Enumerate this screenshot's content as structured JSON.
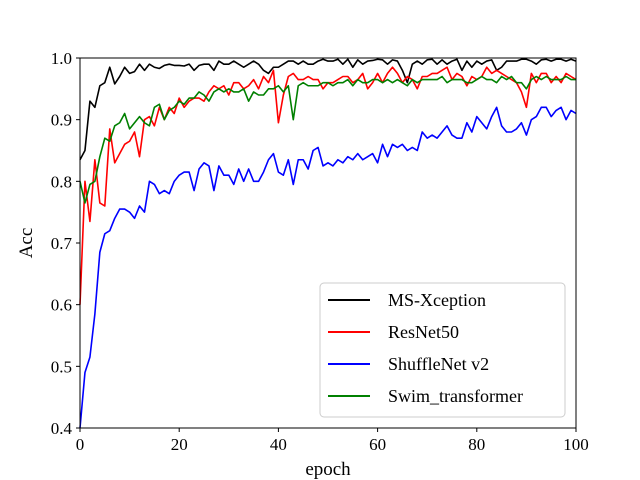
{
  "chart_data": {
    "type": "line",
    "xlabel": "epoch",
    "ylabel": "Acc",
    "xlim": [
      0,
      100
    ],
    "ylim": [
      0.4,
      1.0
    ],
    "xticks": [
      "0",
      "20",
      "40",
      "60",
      "80",
      "100"
    ],
    "yticks": [
      "0.4",
      "0.5",
      "0.6",
      "0.7",
      "0.8",
      "0.9",
      "1.0"
    ],
    "legend_position": "lower-right",
    "grid": false,
    "series": [
      {
        "name": "MS-Xception",
        "color": "#000000",
        "values": [
          0.835,
          0.85,
          0.93,
          0.92,
          0.955,
          0.96,
          0.985,
          0.958,
          0.97,
          0.985,
          0.975,
          0.978,
          0.99,
          0.98,
          0.99,
          0.985,
          0.983,
          0.988,
          0.99,
          0.988,
          0.988,
          0.987,
          0.99,
          0.98,
          0.988,
          0.99,
          0.99,
          0.98,
          0.995,
          0.99,
          0.99,
          0.995,
          0.99,
          0.985,
          0.99,
          0.995,
          0.99,
          0.98,
          0.975,
          0.985,
          0.985,
          0.99,
          0.995,
          0.995,
          0.99,
          0.995,
          0.99,
          0.99,
          0.995,
          0.998,
          0.995,
          0.995,
          0.998,
          0.99,
          0.998,
          0.985,
          0.997,
          0.99,
          0.995,
          0.996,
          0.998,
          0.997,
          0.99,
          0.997,
          0.995,
          0.98,
          0.96,
          0.99,
          0.995,
          0.99,
          0.997,
          0.998,
          0.99,
          0.997,
          0.99,
          0.995,
          0.998,
          0.98,
          0.995,
          0.985,
          0.995,
          0.99,
          0.995,
          0.997,
          0.98,
          0.985,
          0.995,
          0.995,
          0.995,
          0.998,
          0.998,
          0.995,
          0.99,
          0.997,
          0.998,
          0.995,
          0.998,
          0.998,
          0.995,
          0.998,
          0.995
        ]
      },
      {
        "name": "ResNet50",
        "color": "#ff0000",
        "values": [
          0.6,
          0.8,
          0.735,
          0.835,
          0.765,
          0.76,
          0.885,
          0.83,
          0.845,
          0.86,
          0.865,
          0.88,
          0.84,
          0.9,
          0.905,
          0.89,
          0.92,
          0.9,
          0.92,
          0.91,
          0.935,
          0.92,
          0.93,
          0.935,
          0.935,
          0.93,
          0.945,
          0.955,
          0.95,
          0.955,
          0.94,
          0.96,
          0.96,
          0.95,
          0.955,
          0.965,
          0.95,
          0.97,
          0.96,
          0.98,
          0.895,
          0.94,
          0.97,
          0.975,
          0.965,
          0.965,
          0.97,
          0.965,
          0.965,
          0.95,
          0.96,
          0.96,
          0.965,
          0.97,
          0.97,
          0.96,
          0.965,
          0.975,
          0.95,
          0.96,
          0.975,
          0.96,
          0.975,
          0.985,
          0.975,
          0.96,
          0.97,
          0.965,
          0.95,
          0.97,
          0.97,
          0.975,
          0.975,
          0.98,
          0.985,
          0.965,
          0.975,
          0.97,
          0.955,
          0.97,
          0.965,
          0.97,
          0.985,
          0.975,
          0.98,
          0.975,
          0.97,
          0.965,
          0.96,
          0.945,
          0.92,
          0.975,
          0.96,
          0.975,
          0.975,
          0.96,
          0.97,
          0.96,
          0.975,
          0.97,
          0.965
        ]
      },
      {
        "name": "ShuffleNet v2",
        "color": "#0000ff",
        "values": [
          0.4,
          0.49,
          0.515,
          0.585,
          0.685,
          0.715,
          0.72,
          0.74,
          0.755,
          0.755,
          0.75,
          0.74,
          0.76,
          0.75,
          0.8,
          0.795,
          0.78,
          0.785,
          0.78,
          0.8,
          0.81,
          0.815,
          0.815,
          0.785,
          0.82,
          0.83,
          0.825,
          0.785,
          0.825,
          0.81,
          0.81,
          0.795,
          0.82,
          0.8,
          0.82,
          0.8,
          0.8,
          0.815,
          0.835,
          0.845,
          0.815,
          0.81,
          0.835,
          0.795,
          0.835,
          0.835,
          0.82,
          0.85,
          0.855,
          0.825,
          0.83,
          0.825,
          0.835,
          0.83,
          0.84,
          0.835,
          0.845,
          0.835,
          0.84,
          0.845,
          0.83,
          0.86,
          0.84,
          0.86,
          0.855,
          0.86,
          0.85,
          0.855,
          0.85,
          0.88,
          0.87,
          0.875,
          0.87,
          0.88,
          0.89,
          0.875,
          0.87,
          0.87,
          0.895,
          0.88,
          0.905,
          0.895,
          0.885,
          0.905,
          0.92,
          0.89,
          0.88,
          0.88,
          0.885,
          0.895,
          0.875,
          0.9,
          0.905,
          0.92,
          0.92,
          0.905,
          0.915,
          0.92,
          0.9,
          0.915,
          0.91
        ]
      },
      {
        "name": "Swim_transformer",
        "color": "#008000",
        "values": [
          0.8,
          0.765,
          0.795,
          0.8,
          0.84,
          0.87,
          0.865,
          0.89,
          0.895,
          0.91,
          0.885,
          0.895,
          0.905,
          0.895,
          0.89,
          0.92,
          0.925,
          0.9,
          0.915,
          0.92,
          0.93,
          0.925,
          0.935,
          0.935,
          0.945,
          0.94,
          0.93,
          0.945,
          0.95,
          0.945,
          0.95,
          0.945,
          0.945,
          0.95,
          0.93,
          0.945,
          0.94,
          0.94,
          0.95,
          0.95,
          0.955,
          0.945,
          0.955,
          0.9,
          0.955,
          0.96,
          0.955,
          0.955,
          0.955,
          0.96,
          0.96,
          0.955,
          0.96,
          0.96,
          0.965,
          0.955,
          0.965,
          0.96,
          0.96,
          0.965,
          0.965,
          0.96,
          0.965,
          0.96,
          0.965,
          0.96,
          0.955,
          0.965,
          0.96,
          0.965,
          0.965,
          0.965,
          0.965,
          0.97,
          0.96,
          0.965,
          0.965,
          0.965,
          0.96,
          0.96,
          0.965,
          0.97,
          0.965,
          0.965,
          0.96,
          0.97,
          0.965,
          0.97,
          0.96,
          0.96,
          0.95,
          0.965,
          0.97,
          0.965,
          0.97,
          0.965,
          0.965,
          0.965,
          0.97,
          0.965,
          0.965
        ]
      }
    ]
  }
}
